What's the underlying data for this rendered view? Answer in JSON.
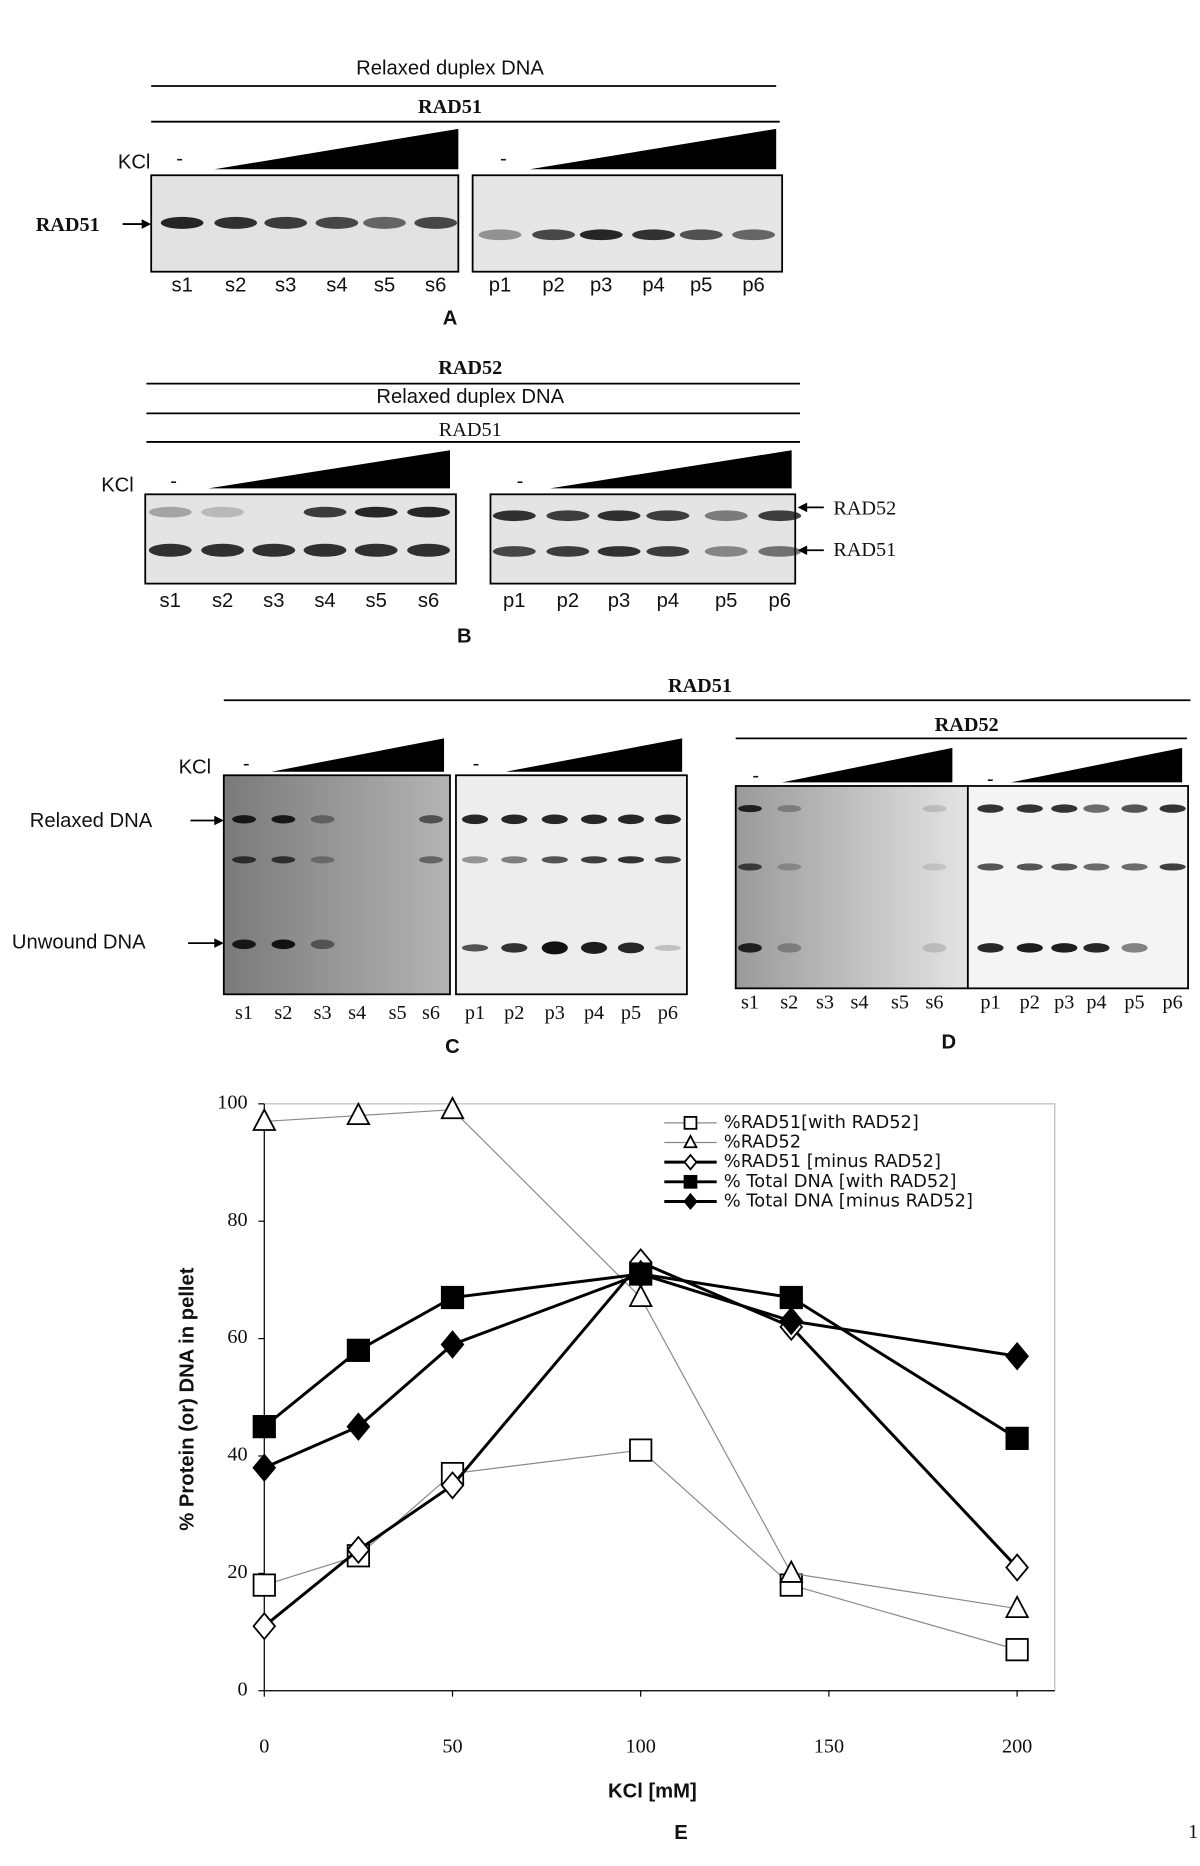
{
  "panel_a": {
    "header_top": "Relaxed duplex DNA",
    "header_bottom": "RAD51",
    "kcl": "KCl",
    "minus": [
      "-",
      "-"
    ],
    "protein_label": "RAD51",
    "lanes_s": [
      "s1",
      "s2",
      "s3",
      "s4",
      "s5",
      "s6"
    ],
    "lanes_p": [
      "p1",
      "p2",
      "p3",
      "p4",
      "p5",
      "p6"
    ],
    "letter": "A"
  },
  "panel_b": {
    "header_top": "RAD52",
    "header_middle": "Relaxed duplex DNA",
    "header_bottom": "RAD51",
    "kcl": "KCl",
    "minus": [
      "-",
      "-"
    ],
    "right_labels": [
      "RAD52",
      "RAD51"
    ],
    "lanes_s": [
      "s1",
      "s2",
      "s3",
      "s4",
      "s5",
      "s6"
    ],
    "lanes_p": [
      "p1",
      "p2",
      "p3",
      "p4",
      "p5",
      "p6"
    ],
    "letter": "B"
  },
  "panel_c": {
    "header": "RAD51",
    "kcl": "KCl",
    "minus": [
      "-",
      "-"
    ],
    "left_labels": [
      "Relaxed DNA",
      "Unwound DNA"
    ],
    "lanes_s": [
      "s1",
      "s2",
      "s3",
      "s4",
      "s5",
      "s6"
    ],
    "lanes_p": [
      "p1",
      "p2",
      "p3",
      "p4",
      "p5",
      "p6"
    ],
    "letter": "C"
  },
  "panel_d": {
    "header": "RAD52",
    "minus": [
      "-",
      "-"
    ],
    "lanes_s": [
      "s1",
      "s2",
      "s3",
      "s4",
      "s5",
      "s6"
    ],
    "lanes_p": [
      "p1",
      "p2",
      "p3",
      "p4",
      "p5",
      "p6"
    ],
    "letter": "D"
  },
  "chart_data": {
    "type": "line",
    "x_label": "KCl [mM]",
    "y_label": "% Protein (or) DNA in pellet",
    "x": [
      0,
      25,
      50,
      100,
      140,
      200
    ],
    "xlim": [
      0,
      210
    ],
    "xticks": [
      0,
      50,
      100,
      150,
      200
    ],
    "ylim": [
      0,
      100
    ],
    "yticks": [
      0,
      20,
      40,
      60,
      80,
      100
    ],
    "legend": "upper right",
    "series": [
      {
        "name": "%RAD51[with RAD52]",
        "color": "#888888",
        "marker": "square",
        "filled": false,
        "line_width": 1,
        "values": [
          18,
          23,
          37,
          41,
          18,
          7
        ]
      },
      {
        "name": "%RAD52",
        "color": "#888888",
        "marker": "triangle",
        "filled": false,
        "line_width": 1,
        "values": [
          97,
          98,
          99,
          67,
          20,
          14
        ]
      },
      {
        "name": "%RAD51 [minus RAD52]",
        "color": "#000000",
        "marker": "diamond",
        "filled": false,
        "line_width": 2.5,
        "values": [
          11,
          24,
          35,
          73,
          62,
          21
        ]
      },
      {
        "name": "% Total DNA [with RAD52]",
        "color": "#000000",
        "marker": "square",
        "filled": true,
        "line_width": 2.5,
        "values": [
          45,
          58,
          67,
          71,
          67,
          43
        ]
      },
      {
        "name": "% Total DNA [minus RAD52]",
        "color": "#000000",
        "marker": "diamond",
        "filled": true,
        "line_width": 2.5,
        "values": [
          38,
          45,
          59,
          71,
          63,
          57
        ]
      }
    ]
  },
  "panel_e": {
    "letter": "E"
  },
  "page_number": "1"
}
